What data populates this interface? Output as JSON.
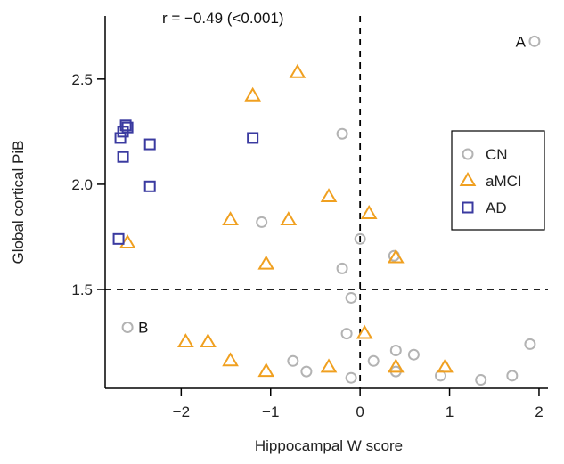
{
  "chart_data": {
    "type": "scatter",
    "title": "",
    "annotation_text": "r = −0.49 (<0.001)",
    "xlabel": "Hippocampal W score",
    "ylabel": "Global cortical PiB",
    "xlim": [
      -2.85,
      2.1
    ],
    "ylim": [
      1.03,
      2.8
    ],
    "xticks": [
      -2,
      -1,
      0,
      1,
      2
    ],
    "xtick_labels": [
      "−2",
      "−1",
      "0",
      "1",
      "2"
    ],
    "yticks": [
      1.5,
      2.0,
      2.5
    ],
    "ytick_labels": [
      "1.5",
      "2.0",
      "2.5"
    ],
    "reference_lines": {
      "x": 0,
      "y": 1.5
    },
    "legend_position": "right",
    "grid": false,
    "series": [
      {
        "name": "CN",
        "marker": "circle",
        "color": "#b3b3b3",
        "points": [
          [
            -0.2,
            2.24
          ],
          [
            -1.1,
            1.82
          ],
          [
            0.0,
            1.74
          ],
          [
            0.38,
            1.66
          ],
          [
            -0.2,
            1.6
          ],
          [
            -0.1,
            1.46
          ],
          [
            -2.6,
            1.32
          ],
          [
            -0.15,
            1.29
          ],
          [
            0.4,
            1.21
          ],
          [
            0.6,
            1.19
          ],
          [
            0.15,
            1.16
          ],
          [
            -0.75,
            1.16
          ],
          [
            -0.6,
            1.11
          ],
          [
            0.4,
            1.11
          ],
          [
            -0.1,
            1.08
          ],
          [
            0.9,
            1.09
          ],
          [
            1.35,
            1.07
          ],
          [
            1.7,
            1.09
          ],
          [
            1.9,
            1.24
          ],
          [
            1.95,
            2.68
          ]
        ]
      },
      {
        "name": "aMCI",
        "marker": "triangle",
        "color": "#f0a020",
        "points": [
          [
            -0.7,
            2.53
          ],
          [
            -1.2,
            2.42
          ],
          [
            -0.35,
            1.94
          ],
          [
            0.1,
            1.86
          ],
          [
            -1.45,
            1.83
          ],
          [
            -0.8,
            1.83
          ],
          [
            -2.6,
            1.72
          ],
          [
            0.4,
            1.65
          ],
          [
            -1.05,
            1.62
          ],
          [
            0.05,
            1.29
          ],
          [
            -1.95,
            1.25
          ],
          [
            -1.7,
            1.25
          ],
          [
            -1.45,
            1.16
          ],
          [
            -1.05,
            1.11
          ],
          [
            -0.35,
            1.13
          ],
          [
            0.4,
            1.13
          ],
          [
            0.95,
            1.13
          ]
        ]
      },
      {
        "name": "AD",
        "marker": "square",
        "color": "#3a3aa0",
        "points": [
          [
            -2.62,
            2.28
          ],
          [
            -2.6,
            2.27
          ],
          [
            -2.65,
            2.25
          ],
          [
            -2.68,
            2.22
          ],
          [
            -2.35,
            2.19
          ],
          [
            -1.2,
            2.22
          ],
          [
            -2.65,
            2.13
          ],
          [
            -2.35,
            1.99
          ],
          [
            -2.7,
            1.74
          ]
        ]
      }
    ],
    "point_labels": [
      {
        "text": "A",
        "x": 1.95,
        "y": 2.68,
        "side": "left"
      },
      {
        "text": "B",
        "x": -2.6,
        "y": 1.32,
        "side": "right"
      }
    ]
  }
}
